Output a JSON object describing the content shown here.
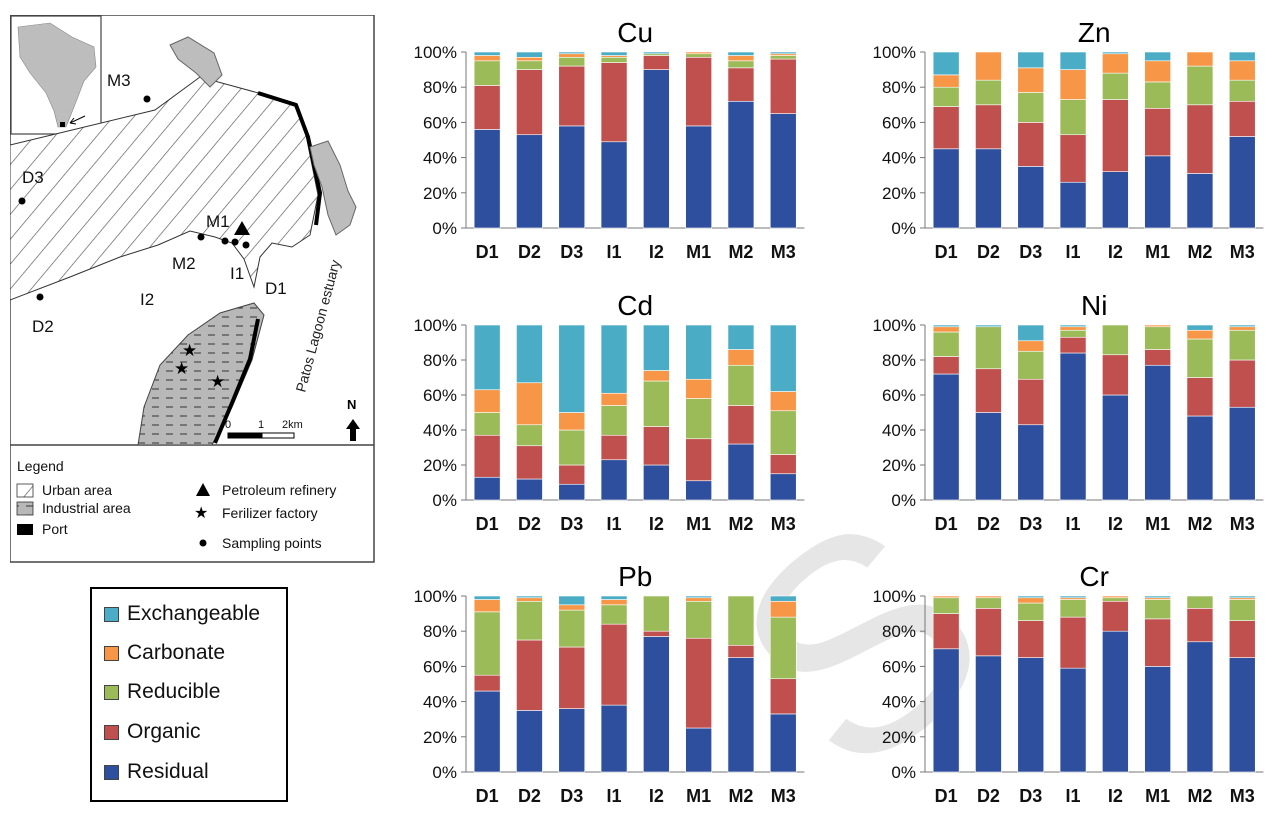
{
  "colors": {
    "Exchangeable": "#4bacc6",
    "Carbonate": "#f79646",
    "Reducible": "#9bbb59",
    "Organic": "#c0504d",
    "Residual": "#2e4f9e"
  },
  "map": {
    "stations": [
      "M3",
      "D3",
      "M1",
      "M2",
      "I1",
      "D1",
      "D2",
      "I2"
    ],
    "estuary_label": "Patos Lagoon estuary",
    "north_label": "N",
    "scale_labels": [
      "0",
      "1",
      "2km"
    ],
    "legend": {
      "title": "Legend",
      "items": [
        {
          "label": "Urban area",
          "symbol": "hatch-diagonal"
        },
        {
          "label": "Petroleum refinery",
          "symbol": "triangle"
        },
        {
          "label": "Industrial area",
          "symbol": "hatch-dashed"
        },
        {
          "label": "Ferilizer factory",
          "symbol": "star"
        },
        {
          "label": "Port",
          "symbol": "black-rect"
        },
        {
          "label": "Sampling points",
          "symbol": "dot"
        }
      ]
    }
  },
  "fraction_legend": [
    "Exchangeable",
    "Carbonate",
    "Reducible",
    "Organic",
    "Residual"
  ],
  "chart_data": [
    {
      "type": "bar",
      "stacked": true,
      "title": "Cu",
      "categories": [
        "D1",
        "D2",
        "D3",
        "I1",
        "I2",
        "M1",
        "M2",
        "M3"
      ],
      "yticks": [
        "0%",
        "20%",
        "40%",
        "60%",
        "80%",
        "100%"
      ],
      "ylim": [
        0,
        100
      ],
      "series": [
        {
          "name": "Residual",
          "values": [
            56,
            53,
            58,
            49,
            90,
            58,
            72,
            65
          ]
        },
        {
          "name": "Organic",
          "values": [
            25,
            37,
            34,
            45,
            8,
            39,
            19,
            31
          ]
        },
        {
          "name": "Reducible",
          "values": [
            14,
            5,
            5,
            3,
            1,
            2,
            4,
            2
          ]
        },
        {
          "name": "Carbonate",
          "values": [
            3,
            2,
            2,
            1,
            0,
            1,
            3,
            1
          ]
        },
        {
          "name": "Exchangeable",
          "values": [
            2,
            3,
            1,
            2,
            1,
            0,
            2,
            1
          ]
        }
      ]
    },
    {
      "type": "bar",
      "stacked": true,
      "title": "Zn",
      "categories": [
        "D1",
        "D2",
        "D3",
        "I1",
        "I2",
        "M1",
        "M2",
        "M3"
      ],
      "yticks": [
        "0%",
        "20%",
        "40%",
        "60%",
        "80%",
        "100%"
      ],
      "ylim": [
        0,
        100
      ],
      "series": [
        {
          "name": "Residual",
          "values": [
            45,
            45,
            35,
            26,
            32,
            41,
            31,
            52
          ]
        },
        {
          "name": "Organic",
          "values": [
            24,
            25,
            25,
            27,
            41,
            27,
            39,
            20
          ]
        },
        {
          "name": "Reducible",
          "values": [
            11,
            14,
            17,
            20,
            15,
            15,
            22,
            12
          ]
        },
        {
          "name": "Carbonate",
          "values": [
            7,
            16,
            14,
            17,
            11,
            12,
            8,
            11
          ]
        },
        {
          "name": "Exchangeable",
          "values": [
            13,
            0,
            9,
            10,
            1,
            5,
            0,
            5
          ]
        }
      ]
    },
    {
      "type": "bar",
      "stacked": true,
      "title": "Cd",
      "categories": [
        "D1",
        "D2",
        "D3",
        "I1",
        "I2",
        "M1",
        "M2",
        "M3"
      ],
      "yticks": [
        "0%",
        "20%",
        "40%",
        "60%",
        "80%",
        "100%"
      ],
      "ylim": [
        0,
        100
      ],
      "series": [
        {
          "name": "Residual",
          "values": [
            13,
            12,
            9,
            23,
            20,
            11,
            32,
            15
          ]
        },
        {
          "name": "Organic",
          "values": [
            24,
            19,
            11,
            14,
            22,
            24,
            22,
            11
          ]
        },
        {
          "name": "Reducible",
          "values": [
            13,
            12,
            20,
            17,
            26,
            23,
            23,
            25
          ]
        },
        {
          "name": "Carbonate",
          "values": [
            13,
            24,
            10,
            7,
            6,
            11,
            9,
            11
          ]
        },
        {
          "name": "Exchangeable",
          "values": [
            37,
            33,
            50,
            39,
            26,
            31,
            14,
            38
          ]
        }
      ]
    },
    {
      "type": "bar",
      "stacked": true,
      "title": "Ni",
      "categories": [
        "D1",
        "D2",
        "D3",
        "I1",
        "I2",
        "M1",
        "M2",
        "M3"
      ],
      "yticks": [
        "0%",
        "20%",
        "40%",
        "60%",
        "80%",
        "100%"
      ],
      "ylim": [
        0,
        100
      ],
      "series": [
        {
          "name": "Residual",
          "values": [
            72,
            50,
            43,
            84,
            60,
            77,
            48,
            53
          ]
        },
        {
          "name": "Organic",
          "values": [
            10,
            25,
            26,
            9,
            23,
            9,
            22,
            27
          ]
        },
        {
          "name": "Reducible",
          "values": [
            14,
            24,
            16,
            4,
            17,
            13,
            22,
            17
          ]
        },
        {
          "name": "Carbonate",
          "values": [
            3,
            0,
            6,
            2,
            0,
            1,
            5,
            2
          ]
        },
        {
          "name": "Exchangeable",
          "values": [
            1,
            1,
            9,
            1,
            0,
            0,
            3,
            1
          ]
        }
      ]
    },
    {
      "type": "bar",
      "stacked": true,
      "title": "Pb",
      "categories": [
        "D1",
        "D2",
        "D3",
        "I1",
        "I2",
        "M1",
        "M2",
        "M3"
      ],
      "yticks": [
        "0%",
        "20%",
        "40%",
        "60%",
        "80%",
        "100%"
      ],
      "ylim": [
        0,
        100
      ],
      "series": [
        {
          "name": "Residual",
          "values": [
            46,
            35,
            36,
            38,
            77,
            25,
            65,
            33
          ]
        },
        {
          "name": "Organic",
          "values": [
            9,
            40,
            35,
            46,
            3,
            51,
            7,
            20
          ]
        },
        {
          "name": "Reducible",
          "values": [
            36,
            22,
            21,
            11,
            20,
            21,
            28,
            35
          ]
        },
        {
          "name": "Carbonate",
          "values": [
            7,
            2,
            3,
            3,
            0,
            2,
            0,
            9
          ]
        },
        {
          "name": "Exchangeable",
          "values": [
            2,
            1,
            5,
            2,
            0,
            1,
            0,
            3
          ]
        }
      ]
    },
    {
      "type": "bar",
      "stacked": true,
      "title": "Cr",
      "categories": [
        "D1",
        "D2",
        "D3",
        "I1",
        "I2",
        "M1",
        "M2",
        "M3"
      ],
      "yticks": [
        "0%",
        "20%",
        "40%",
        "60%",
        "80%",
        "100%"
      ],
      "ylim": [
        0,
        100
      ],
      "series": [
        {
          "name": "Residual",
          "values": [
            70,
            66,
            65,
            59,
            80,
            60,
            74,
            65
          ]
        },
        {
          "name": "Organic",
          "values": [
            20,
            27,
            21,
            29,
            17,
            27,
            19,
            21
          ]
        },
        {
          "name": "Reducible",
          "values": [
            9,
            6,
            10,
            10,
            2,
            11,
            7,
            12
          ]
        },
        {
          "name": "Carbonate",
          "values": [
            1,
            1,
            3,
            1,
            1,
            1,
            0,
            1
          ]
        },
        {
          "name": "Exchangeable",
          "values": [
            0,
            0,
            1,
            1,
            0,
            1,
            0,
            1
          ]
        }
      ]
    }
  ]
}
